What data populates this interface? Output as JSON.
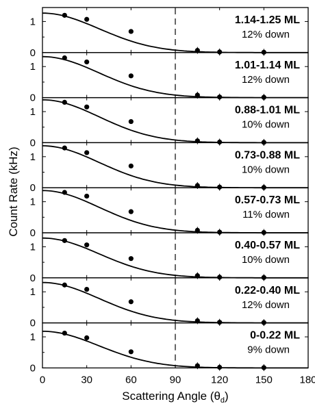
{
  "chart_data": {
    "type": "scatter",
    "layout": "stacked panels sharing x axis",
    "xlabel": "Scattering Angle (θ",
    "xlabel_sub": "d",
    "xlabel_close": ")",
    "ylabel": "Count Rate (kHz)",
    "xlim": [
      0,
      180
    ],
    "xticks": [
      "0",
      "30",
      "60",
      "90",
      "120",
      "150",
      "180"
    ],
    "ylim": [
      0,
      1.45
    ],
    "yticks": [
      "0",
      "1"
    ],
    "reference_line": {
      "x": 90,
      "style": "dashed"
    },
    "panels": [
      {
        "range_label": "1.14-1.25 ML",
        "down_label": "12% down",
        "amplitude": 1.27,
        "points": [
          {
            "x": 15,
            "y": 1.2
          },
          {
            "x": 30,
            "y": 1.07
          },
          {
            "x": 60,
            "y": 0.68
          },
          {
            "x": 105,
            "y": 0.07
          },
          {
            "x": 120,
            "y": 0.02
          },
          {
            "x": 150,
            "y": 0.01
          }
        ]
      },
      {
        "range_label": "1.01-1.14 ML",
        "down_label": "12% down",
        "amplitude": 1.32,
        "points": [
          {
            "x": 15,
            "y": 1.28
          },
          {
            "x": 30,
            "y": 1.15
          },
          {
            "x": 60,
            "y": 0.7
          },
          {
            "x": 105,
            "y": 0.08
          },
          {
            "x": 120,
            "y": 0.02
          },
          {
            "x": 150,
            "y": 0.01
          }
        ]
      },
      {
        "range_label": "0.88-1.01 ML",
        "down_label": "10% down",
        "amplitude": 1.38,
        "points": [
          {
            "x": 15,
            "y": 1.3
          },
          {
            "x": 30,
            "y": 1.15
          },
          {
            "x": 60,
            "y": 0.68
          },
          {
            "x": 105,
            "y": 0.06
          },
          {
            "x": 120,
            "y": 0.02
          },
          {
            "x": 150,
            "y": 0.01
          }
        ]
      },
      {
        "range_label": "0.73-0.88 ML",
        "down_label": "10% down",
        "amplitude": 1.35,
        "points": [
          {
            "x": 15,
            "y": 1.28
          },
          {
            "x": 30,
            "y": 1.13
          },
          {
            "x": 60,
            "y": 0.7
          },
          {
            "x": 105,
            "y": 0.07
          },
          {
            "x": 120,
            "y": 0.02
          },
          {
            "x": 150,
            "y": 0.01
          }
        ]
      },
      {
        "range_label": "0.57-0.73 ML",
        "down_label": "11% down",
        "amplitude": 1.36,
        "points": [
          {
            "x": 15,
            "y": 1.3
          },
          {
            "x": 30,
            "y": 1.18
          },
          {
            "x": 60,
            "y": 0.68
          },
          {
            "x": 105,
            "y": 0.08
          },
          {
            "x": 120,
            "y": 0.02
          },
          {
            "x": 150,
            "y": 0.01
          }
        ]
      },
      {
        "range_label": "0.40-0.57 ML",
        "down_label": "10% down",
        "amplitude": 1.28,
        "points": [
          {
            "x": 15,
            "y": 1.2
          },
          {
            "x": 30,
            "y": 1.06
          },
          {
            "x": 60,
            "y": 0.62
          },
          {
            "x": 105,
            "y": 0.07
          },
          {
            "x": 120,
            "y": 0.02
          },
          {
            "x": 150,
            "y": 0.01
          }
        ]
      },
      {
        "range_label": "0.22-0.40 ML",
        "down_label": "12% down",
        "amplitude": 1.3,
        "points": [
          {
            "x": 15,
            "y": 1.22
          },
          {
            "x": 30,
            "y": 1.08
          },
          {
            "x": 60,
            "y": 0.68
          },
          {
            "x": 105,
            "y": 0.07
          },
          {
            "x": 120,
            "y": 0.02
          },
          {
            "x": 150,
            "y": 0.01
          }
        ]
      },
      {
        "range_label": "0-0.22 ML",
        "down_label": "9% down",
        "amplitude": 1.18,
        "points": [
          {
            "x": 15,
            "y": 1.12
          },
          {
            "x": 30,
            "y": 0.97
          },
          {
            "x": 60,
            "y": 0.52
          },
          {
            "x": 105,
            "y": 0.07
          },
          {
            "x": 120,
            "y": 0.02
          },
          {
            "x": 150,
            "y": 0.01
          }
        ]
      }
    ]
  }
}
